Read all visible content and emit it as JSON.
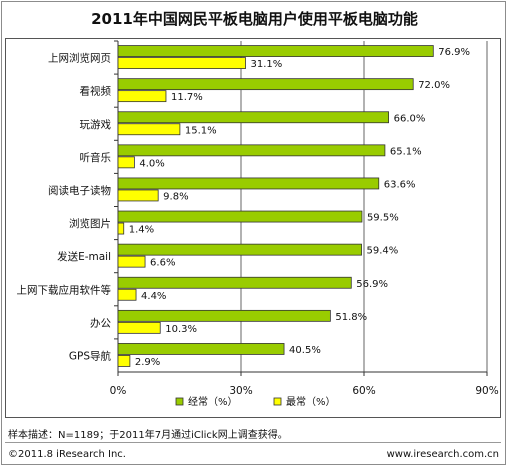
{
  "title": "2011年中国网民平板电脑用户使用平板电脑功能",
  "note": "样本描述：N=1189；于2011年7月通过iClick网上调查获得。",
  "copyright": "©2011.8 iResearch Inc.",
  "website": "www.iresearch.com.cn",
  "colors": {
    "often": "#99cc00",
    "most_often": "#ffff00",
    "grid": "#666666",
    "axis": "#333333"
  },
  "chart_data": {
    "type": "bar",
    "orientation": "horizontal",
    "categories": [
      "上网浏览网页",
      "看视频",
      "玩游戏",
      "听音乐",
      "阅读电子读物",
      "浏览图片",
      "发送E-mail",
      "上网下载应用软件等",
      "办公",
      "GPS导航"
    ],
    "series": [
      {
        "name": "经常（%）",
        "values": [
          76.9,
          72.0,
          66.0,
          65.1,
          63.6,
          59.5,
          59.4,
          56.9,
          51.8,
          40.5
        ]
      },
      {
        "name": "最常（%）",
        "values": [
          31.1,
          11.7,
          15.1,
          4.0,
          9.8,
          1.4,
          6.6,
          4.4,
          10.3,
          2.9
        ]
      }
    ],
    "value_labels": [
      [
        "76.9%",
        "72.0%",
        "66.0%",
        "65.1%",
        "63.6%",
        "59.5%",
        "59.4%",
        "56.9%",
        "51.8%",
        "40.5%"
      ],
      [
        "31.1%",
        "11.7%",
        "15.1%",
        "4.0%",
        "9.8%",
        "1.4%",
        "6.6%",
        "4.4%",
        "10.3%",
        "2.9%"
      ]
    ],
    "xlim": [
      0,
      90
    ],
    "xticks": [
      0,
      30,
      60,
      90
    ],
    "xtick_labels": [
      "0%",
      "30%",
      "60%",
      "90%"
    ],
    "grid": true,
    "legend": "bottom"
  }
}
